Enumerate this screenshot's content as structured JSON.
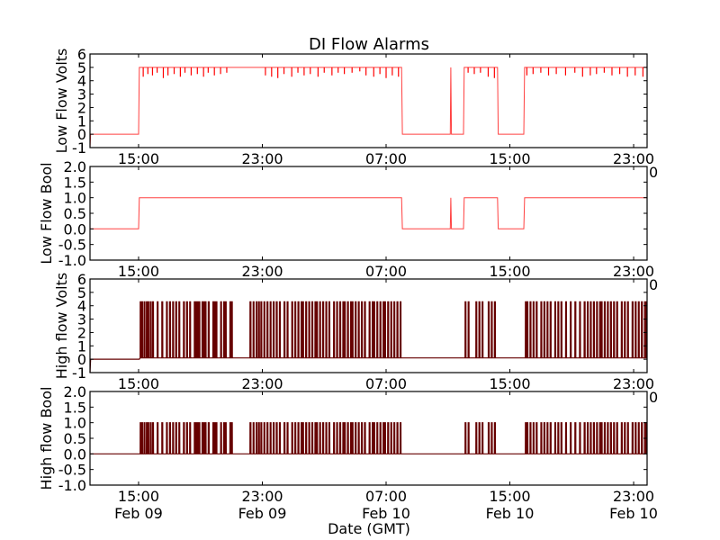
{
  "chart_data": {
    "type": "line",
    "title": "DI Flow Alarms",
    "xlabel": "Date (GMT)",
    "x_units": "hours since Feb 09 00:00 GMT",
    "xlim": [
      11.86,
      47.87
    ],
    "x_ticks": [
      {
        "t": 15,
        "time": "15:00",
        "date": "Feb 09"
      },
      {
        "t": 23,
        "time": "23:00",
        "date": "Feb 09"
      },
      {
        "t": 31,
        "time": "07:00",
        "date": "Feb 10"
      },
      {
        "t": 39,
        "time": "15:00",
        "date": "Feb 10"
      },
      {
        "t": 47,
        "time": "23:00",
        "date": "Feb 10"
      }
    ],
    "stray_label": "0",
    "colors": {
      "low": "#ff0000",
      "high": "#660000"
    },
    "low_flow_steps": [
      [
        11.86,
        -1
      ],
      [
        11.9,
        0
      ],
      [
        15.0,
        0
      ],
      [
        15.05,
        5
      ],
      [
        32.0,
        5
      ],
      [
        32.05,
        0
      ],
      [
        35.15,
        0
      ],
      [
        35.18,
        5
      ],
      [
        35.22,
        0
      ],
      [
        36.0,
        0
      ],
      [
        36.05,
        5
      ],
      [
        38.2,
        5
      ],
      [
        38.25,
        0
      ],
      [
        39.9,
        0
      ],
      [
        39.95,
        5
      ],
      [
        47.87,
        5
      ]
    ],
    "low_flow_dips": [
      [
        15.3,
        4.3
      ],
      [
        15.6,
        4.5
      ],
      [
        15.9,
        4.4
      ],
      [
        16.2,
        4.6
      ],
      [
        16.6,
        4.2
      ],
      [
        16.9,
        4.4
      ],
      [
        17.3,
        4.5
      ],
      [
        17.7,
        4.3
      ],
      [
        18.0,
        4.6
      ],
      [
        18.4,
        4.4
      ],
      [
        18.8,
        4.5
      ],
      [
        19.2,
        4.3
      ],
      [
        19.5,
        4.6
      ],
      [
        19.9,
        4.4
      ],
      [
        20.3,
        4.5
      ],
      [
        20.7,
        4.6
      ],
      [
        23.2,
        4.4
      ],
      [
        23.6,
        4.3
      ],
      [
        24.0,
        4.2
      ],
      [
        24.4,
        4.5
      ],
      [
        24.9,
        4.3
      ],
      [
        25.3,
        4.6
      ],
      [
        25.7,
        4.4
      ],
      [
        26.1,
        4.5
      ],
      [
        26.6,
        4.3
      ],
      [
        27.0,
        4.6
      ],
      [
        27.5,
        4.4
      ],
      [
        27.9,
        4.6
      ],
      [
        28.3,
        4.5
      ],
      [
        28.8,
        4.6
      ],
      [
        29.3,
        4.7
      ],
      [
        29.7,
        4.4
      ],
      [
        30.2,
        4.3
      ],
      [
        30.6,
        4.5
      ],
      [
        31.0,
        4.2
      ],
      [
        31.4,
        4.4
      ],
      [
        31.8,
        4.3
      ],
      [
        36.3,
        4.6
      ],
      [
        36.7,
        4.5
      ],
      [
        37.1,
        4.6
      ],
      [
        37.6,
        4.3
      ],
      [
        38.0,
        4.2
      ],
      [
        40.1,
        4.4
      ],
      [
        40.5,
        4.5
      ],
      [
        41.0,
        4.6
      ],
      [
        41.5,
        4.4
      ],
      [
        42.0,
        4.5
      ],
      [
        42.6,
        4.4
      ],
      [
        43.2,
        4.6
      ],
      [
        43.7,
        4.3
      ],
      [
        44.2,
        4.4
      ],
      [
        44.6,
        4.5
      ],
      [
        45.1,
        4.6
      ],
      [
        45.6,
        4.4
      ],
      [
        46.1,
        4.5
      ],
      [
        46.6,
        4.3
      ],
      [
        47.1,
        4.4
      ],
      [
        47.6,
        4.3
      ]
    ],
    "high_flow_pulse_volts": 4.3,
    "high_flow_pulses": [
      15.1,
      15.2,
      15.35,
      15.5,
      15.6,
      15.75,
      15.9,
      16.2,
      16.5,
      16.8,
      17.0,
      17.2,
      17.4,
      17.6,
      17.9,
      18.1,
      18.3,
      18.6,
      18.7,
      18.8,
      18.9,
      19.1,
      19.2,
      19.3,
      19.5,
      19.8,
      19.9,
      20.0,
      20.3,
      20.5,
      20.6,
      20.9,
      21.0,
      22.2,
      22.4,
      22.6,
      22.75,
      22.9,
      23.1,
      23.3,
      23.5,
      23.7,
      23.9,
      24.1,
      24.4,
      24.6,
      24.9,
      25.1,
      25.3,
      25.5,
      25.6,
      25.8,
      26.0,
      26.2,
      26.4,
      26.5,
      26.7,
      26.9,
      27.1,
      27.3,
      27.6,
      27.8,
      28.0,
      28.2,
      28.3,
      28.5,
      28.7,
      28.8,
      29.0,
      29.2,
      29.4,
      29.6,
      29.9,
      30.1,
      30.2,
      30.4,
      30.6,
      30.8,
      30.9,
      31.1,
      31.3,
      31.5,
      31.7,
      31.9,
      36.1,
      36.3,
      36.8,
      37.0,
      37.2,
      37.6,
      37.8,
      38.0,
      40.0,
      40.1,
      40.3,
      40.5,
      40.7,
      41.0,
      41.2,
      41.4,
      41.6,
      41.9,
      42.1,
      42.3,
      42.6,
      42.9,
      43.2,
      43.5,
      43.8,
      44.0,
      44.2,
      44.4,
      44.6,
      44.8,
      44.9,
      45.1,
      45.3,
      45.5,
      45.7,
      45.9,
      46.2,
      46.4,
      46.6,
      46.9,
      47.1,
      47.3,
      47.5,
      47.7,
      47.8
    ],
    "panels": [
      {
        "ylabel": "Low Flow Volts",
        "ylim": [
          -1,
          6
        ],
        "yticks": [
          "-1",
          "0",
          "1",
          "2",
          "3",
          "4",
          "5",
          "6"
        ],
        "series": "low_volts"
      },
      {
        "ylabel": "Low Flow Bool",
        "ylim": [
          -1,
          2
        ],
        "yticks": [
          "-1.0",
          "-0.5",
          "0.0",
          "0.5",
          "1.0",
          "1.5",
          "2.0"
        ],
        "series": "low_bool"
      },
      {
        "ylabel": "High flow Volts",
        "ylim": [
          -1,
          6
        ],
        "yticks": [
          "-1",
          "0",
          "1",
          "2",
          "3",
          "4",
          "5",
          "6"
        ],
        "series": "high_volts"
      },
      {
        "ylabel": "High flow Bool",
        "ylim": [
          -1,
          2
        ],
        "yticks": [
          "-1.0",
          "-0.5",
          "0.0",
          "0.5",
          "1.0",
          "1.5",
          "2.0"
        ],
        "series": "high_bool"
      }
    ]
  }
}
